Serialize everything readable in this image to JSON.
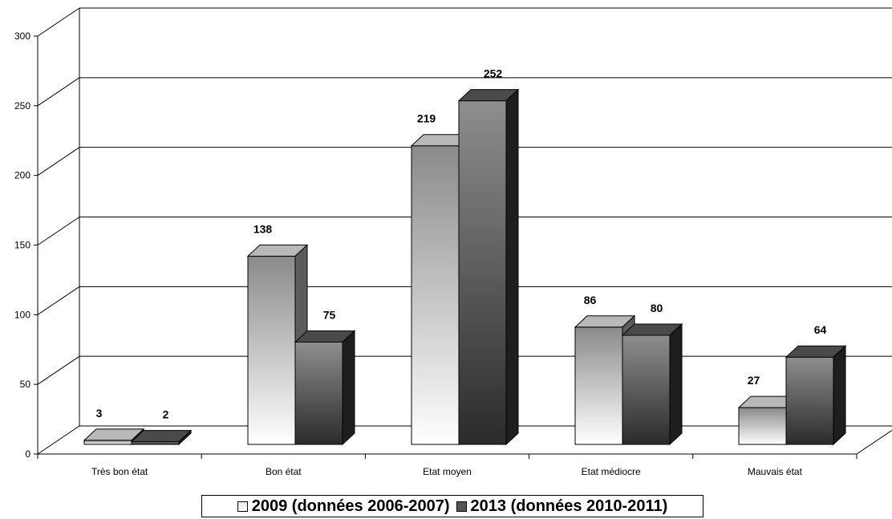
{
  "chart_data": {
    "type": "bar",
    "title": "",
    "xlabel": "",
    "ylabel": "",
    "ylim": [
      0,
      300
    ],
    "yticks": [
      0,
      50,
      100,
      150,
      200,
      250,
      300
    ],
    "grid": true,
    "legend_position": "bottom",
    "categories": [
      "Très bon état",
      "Bon état",
      "Etat moyen",
      "Etat médiocre",
      "Mauvais état"
    ],
    "series": [
      {
        "name": "2009 (données 2006-2007)",
        "values": [
          3,
          138,
          219,
          86,
          27
        ],
        "color": "#9a9a9a"
      },
      {
        "name": "2013 (données 2010-2011)",
        "values": [
          2,
          75,
          252,
          80,
          64
        ],
        "color": "#3a3a3a"
      }
    ]
  }
}
